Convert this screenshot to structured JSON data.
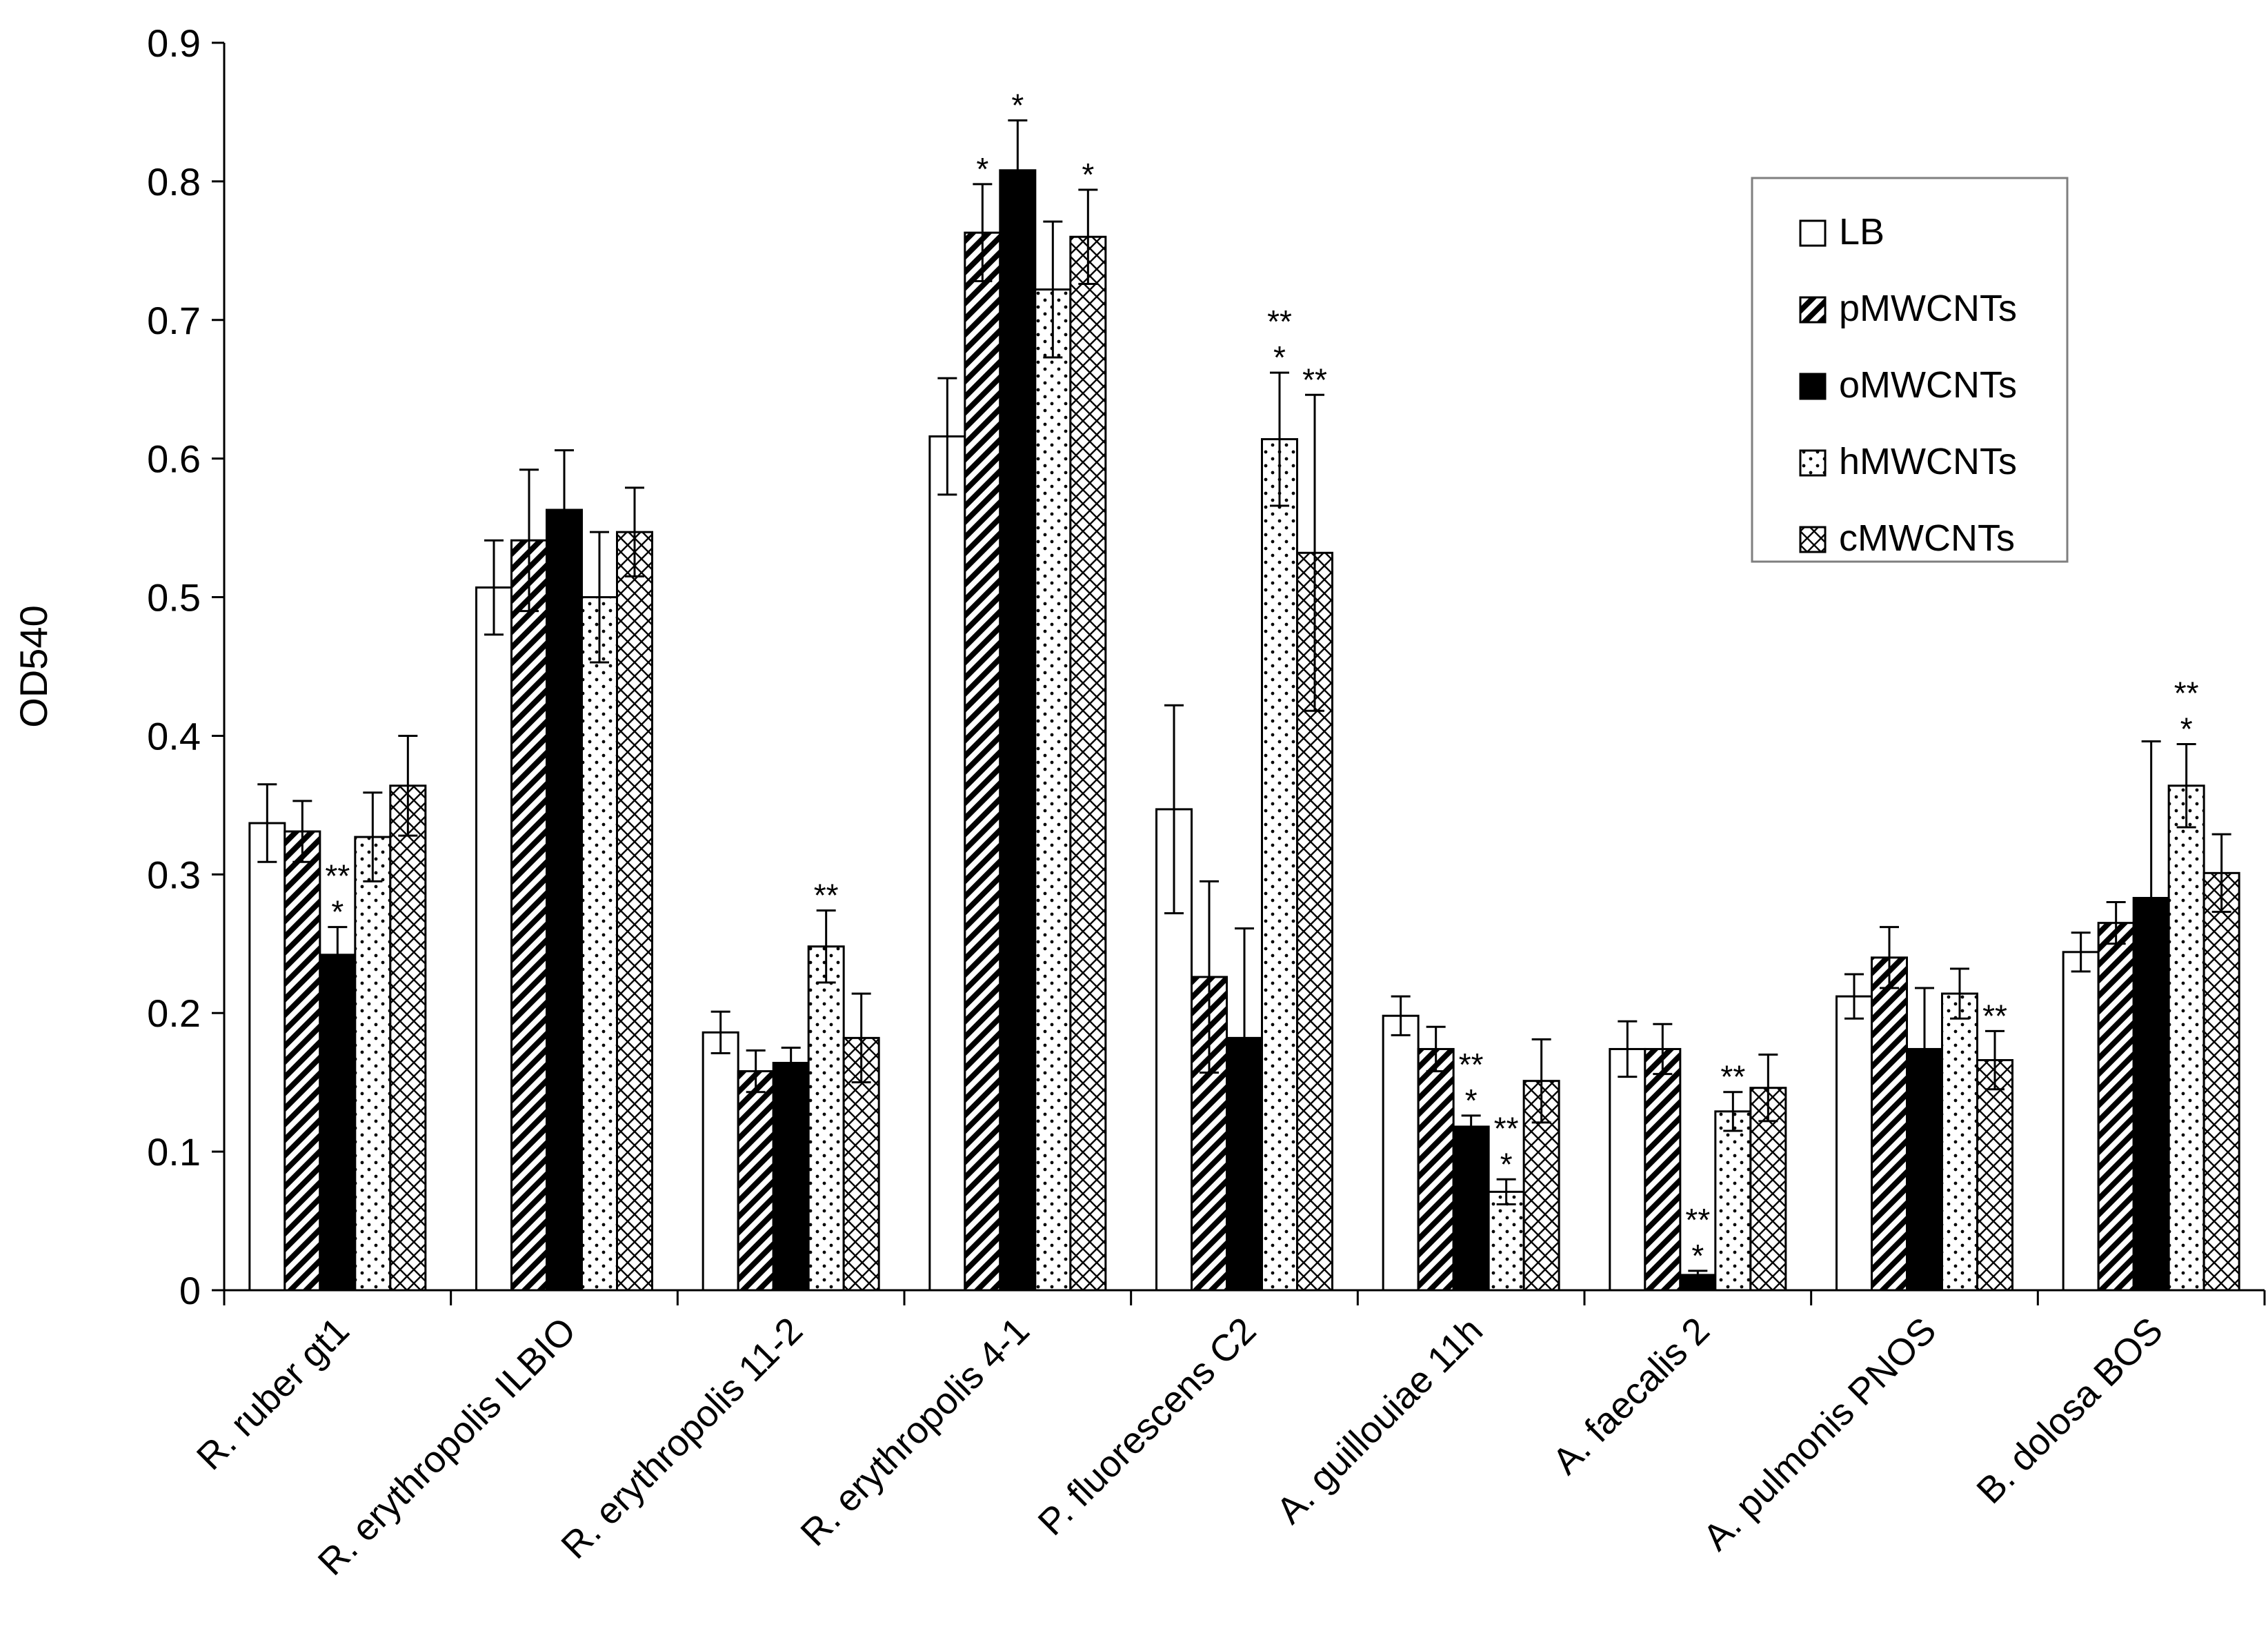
{
  "chart_data": {
    "type": "bar",
    "title": "",
    "xlabel": "",
    "ylabel": "OD540",
    "ylim": [
      0,
      0.9
    ],
    "yticks": [
      "0",
      "0.1",
      "0.2",
      "0.3",
      "0.4",
      "0.5",
      "0.6",
      "0.7",
      "0.8",
      "0.9"
    ],
    "grid": false,
    "legend_position": "top-right",
    "categories": [
      "R. ruber gt1",
      "R. erythropolis ILBIO",
      "R. erythropolis 11-2",
      "R. erythropolis 4-1",
      "P. fluorescens C2",
      "A. guillouiae 11h",
      "A. faecalis 2",
      "A. pulmonis PNOS",
      "B. dolosa BOS"
    ],
    "series": [
      {
        "name": "LB",
        "fill": "white",
        "values": [
          0.337,
          0.507,
          0.186,
          0.616,
          0.347,
          0.198,
          0.174,
          0.212,
          0.244
        ],
        "errors": [
          0.028,
          0.034,
          0.015,
          0.042,
          0.075,
          0.014,
          0.02,
          0.016,
          0.014
        ],
        "annotations": [
          "",
          "",
          "",
          "",
          "",
          "",
          "",
          "",
          ""
        ]
      },
      {
        "name": "pMWCNTs",
        "fill": "diagonal",
        "values": [
          0.331,
          0.541,
          0.158,
          0.763,
          0.226,
          0.174,
          0.174,
          0.24,
          0.265
        ],
        "errors": [
          0.022,
          0.051,
          0.015,
          0.035,
          0.069,
          0.016,
          0.018,
          0.022,
          0.015
        ],
        "annotations": [
          "",
          "",
          "",
          "*",
          "",
          "",
          "",
          "",
          ""
        ]
      },
      {
        "name": "oMWCNTs",
        "fill": "black",
        "values": [
          0.242,
          0.563,
          0.164,
          0.808,
          0.182,
          0.118,
          0.011,
          0.174,
          0.283
        ],
        "errors": [
          0.02,
          0.043,
          0.011,
          0.036,
          0.079,
          0.008,
          0.003,
          0.044,
          0.113
        ],
        "annotations": [
          "**\n*",
          "",
          "",
          "*",
          "",
          "**\n*",
          "**\n*",
          "",
          ""
        ]
      },
      {
        "name": "hMWCNTs",
        "fill": "dots",
        "values": [
          0.327,
          0.5,
          0.248,
          0.722,
          0.614,
          0.071,
          0.129,
          0.214,
          0.364
        ],
        "errors": [
          0.032,
          0.047,
          0.026,
          0.049,
          0.048,
          0.009,
          0.014,
          0.018,
          0.03
        ],
        "annotations": [
          "",
          "",
          "**",
          "",
          "**\n*",
          "**\n*",
          "**",
          "",
          "**\n*"
        ]
      },
      {
        "name": "cMWCNTs",
        "fill": "crosshatch",
        "values": [
          0.364,
          0.547,
          0.182,
          0.76,
          0.532,
          0.151,
          0.146,
          0.166,
          0.301
        ],
        "errors": [
          0.036,
          0.032,
          0.032,
          0.034,
          0.114,
          0.03,
          0.024,
          0.021,
          0.028
        ],
        "annotations": [
          "",
          "",
          "",
          "*",
          "**",
          "",
          "",
          "**",
          ""
        ]
      }
    ]
  }
}
